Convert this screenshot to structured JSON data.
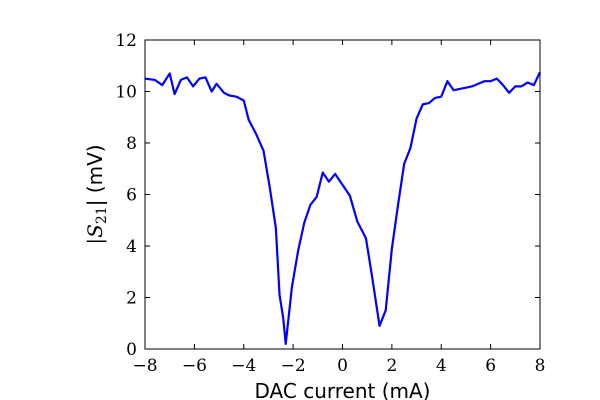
{
  "chart_data": {
    "type": "line",
    "title": "",
    "xlabel": "DAC current (mA)",
    "ylabel": "|S21| (mV)",
    "ylabel_parts": {
      "open": "|",
      "symbol": "S",
      "subscript": "21",
      "close": "| (mV)"
    },
    "xlim": [
      -8,
      8
    ],
    "ylim": [
      0,
      12
    ],
    "xticks": [
      -8,
      -6,
      -4,
      -2,
      0,
      2,
      4,
      6,
      8
    ],
    "xtick_labels": [
      "−8",
      "−6",
      "−4",
      "−2",
      "0",
      "2",
      "4",
      "6",
      "8"
    ],
    "yticks": [
      0,
      2,
      4,
      6,
      8,
      10,
      12
    ],
    "ytick_labels": [
      "0",
      "2",
      "4",
      "6",
      "8",
      "10",
      "12"
    ],
    "grid": false,
    "series": [
      {
        "color": "#0000ff",
        "x": [
          -8.0,
          -7.6,
          -7.3,
          -7.0,
          -6.8,
          -6.55,
          -6.3,
          -6.05,
          -5.8,
          -5.55,
          -5.3,
          -5.1,
          -4.8,
          -4.6,
          -4.3,
          -4.0,
          -3.8,
          -3.5,
          -3.2,
          -2.95,
          -2.7,
          -2.55,
          -2.4,
          -2.3,
          -2.05,
          -1.8,
          -1.55,
          -1.3,
          -1.05,
          -0.8,
          -0.55,
          -0.3,
          0.3,
          0.6,
          0.95,
          1.2,
          1.5,
          1.75,
          2.0,
          2.25,
          2.5,
          2.75,
          3.0,
          3.25,
          3.5,
          3.75,
          4.0,
          4.25,
          4.5,
          4.75,
          5.0,
          5.25,
          5.5,
          5.75,
          6.0,
          6.25,
          6.5,
          6.75,
          7.0,
          7.25,
          7.5,
          7.75,
          8.0
        ],
        "y": [
          10.5,
          10.45,
          10.25,
          10.7,
          9.9,
          10.45,
          10.55,
          10.2,
          10.5,
          10.55,
          10.0,
          10.3,
          9.95,
          9.85,
          9.8,
          9.65,
          8.9,
          8.35,
          7.7,
          6.3,
          4.7,
          2.1,
          1.2,
          0.2,
          2.4,
          3.8,
          4.9,
          5.6,
          5.9,
          6.85,
          6.5,
          6.8,
          5.95,
          4.95,
          4.3,
          2.8,
          0.9,
          1.5,
          3.9,
          5.6,
          7.2,
          7.8,
          8.95,
          9.5,
          9.55,
          9.75,
          9.8,
          10.4,
          10.05,
          10.1,
          10.15,
          10.2,
          10.3,
          10.4,
          10.4,
          10.5,
          10.25,
          9.95,
          10.2,
          10.2,
          10.35,
          10.25,
          10.75
        ]
      }
    ]
  }
}
